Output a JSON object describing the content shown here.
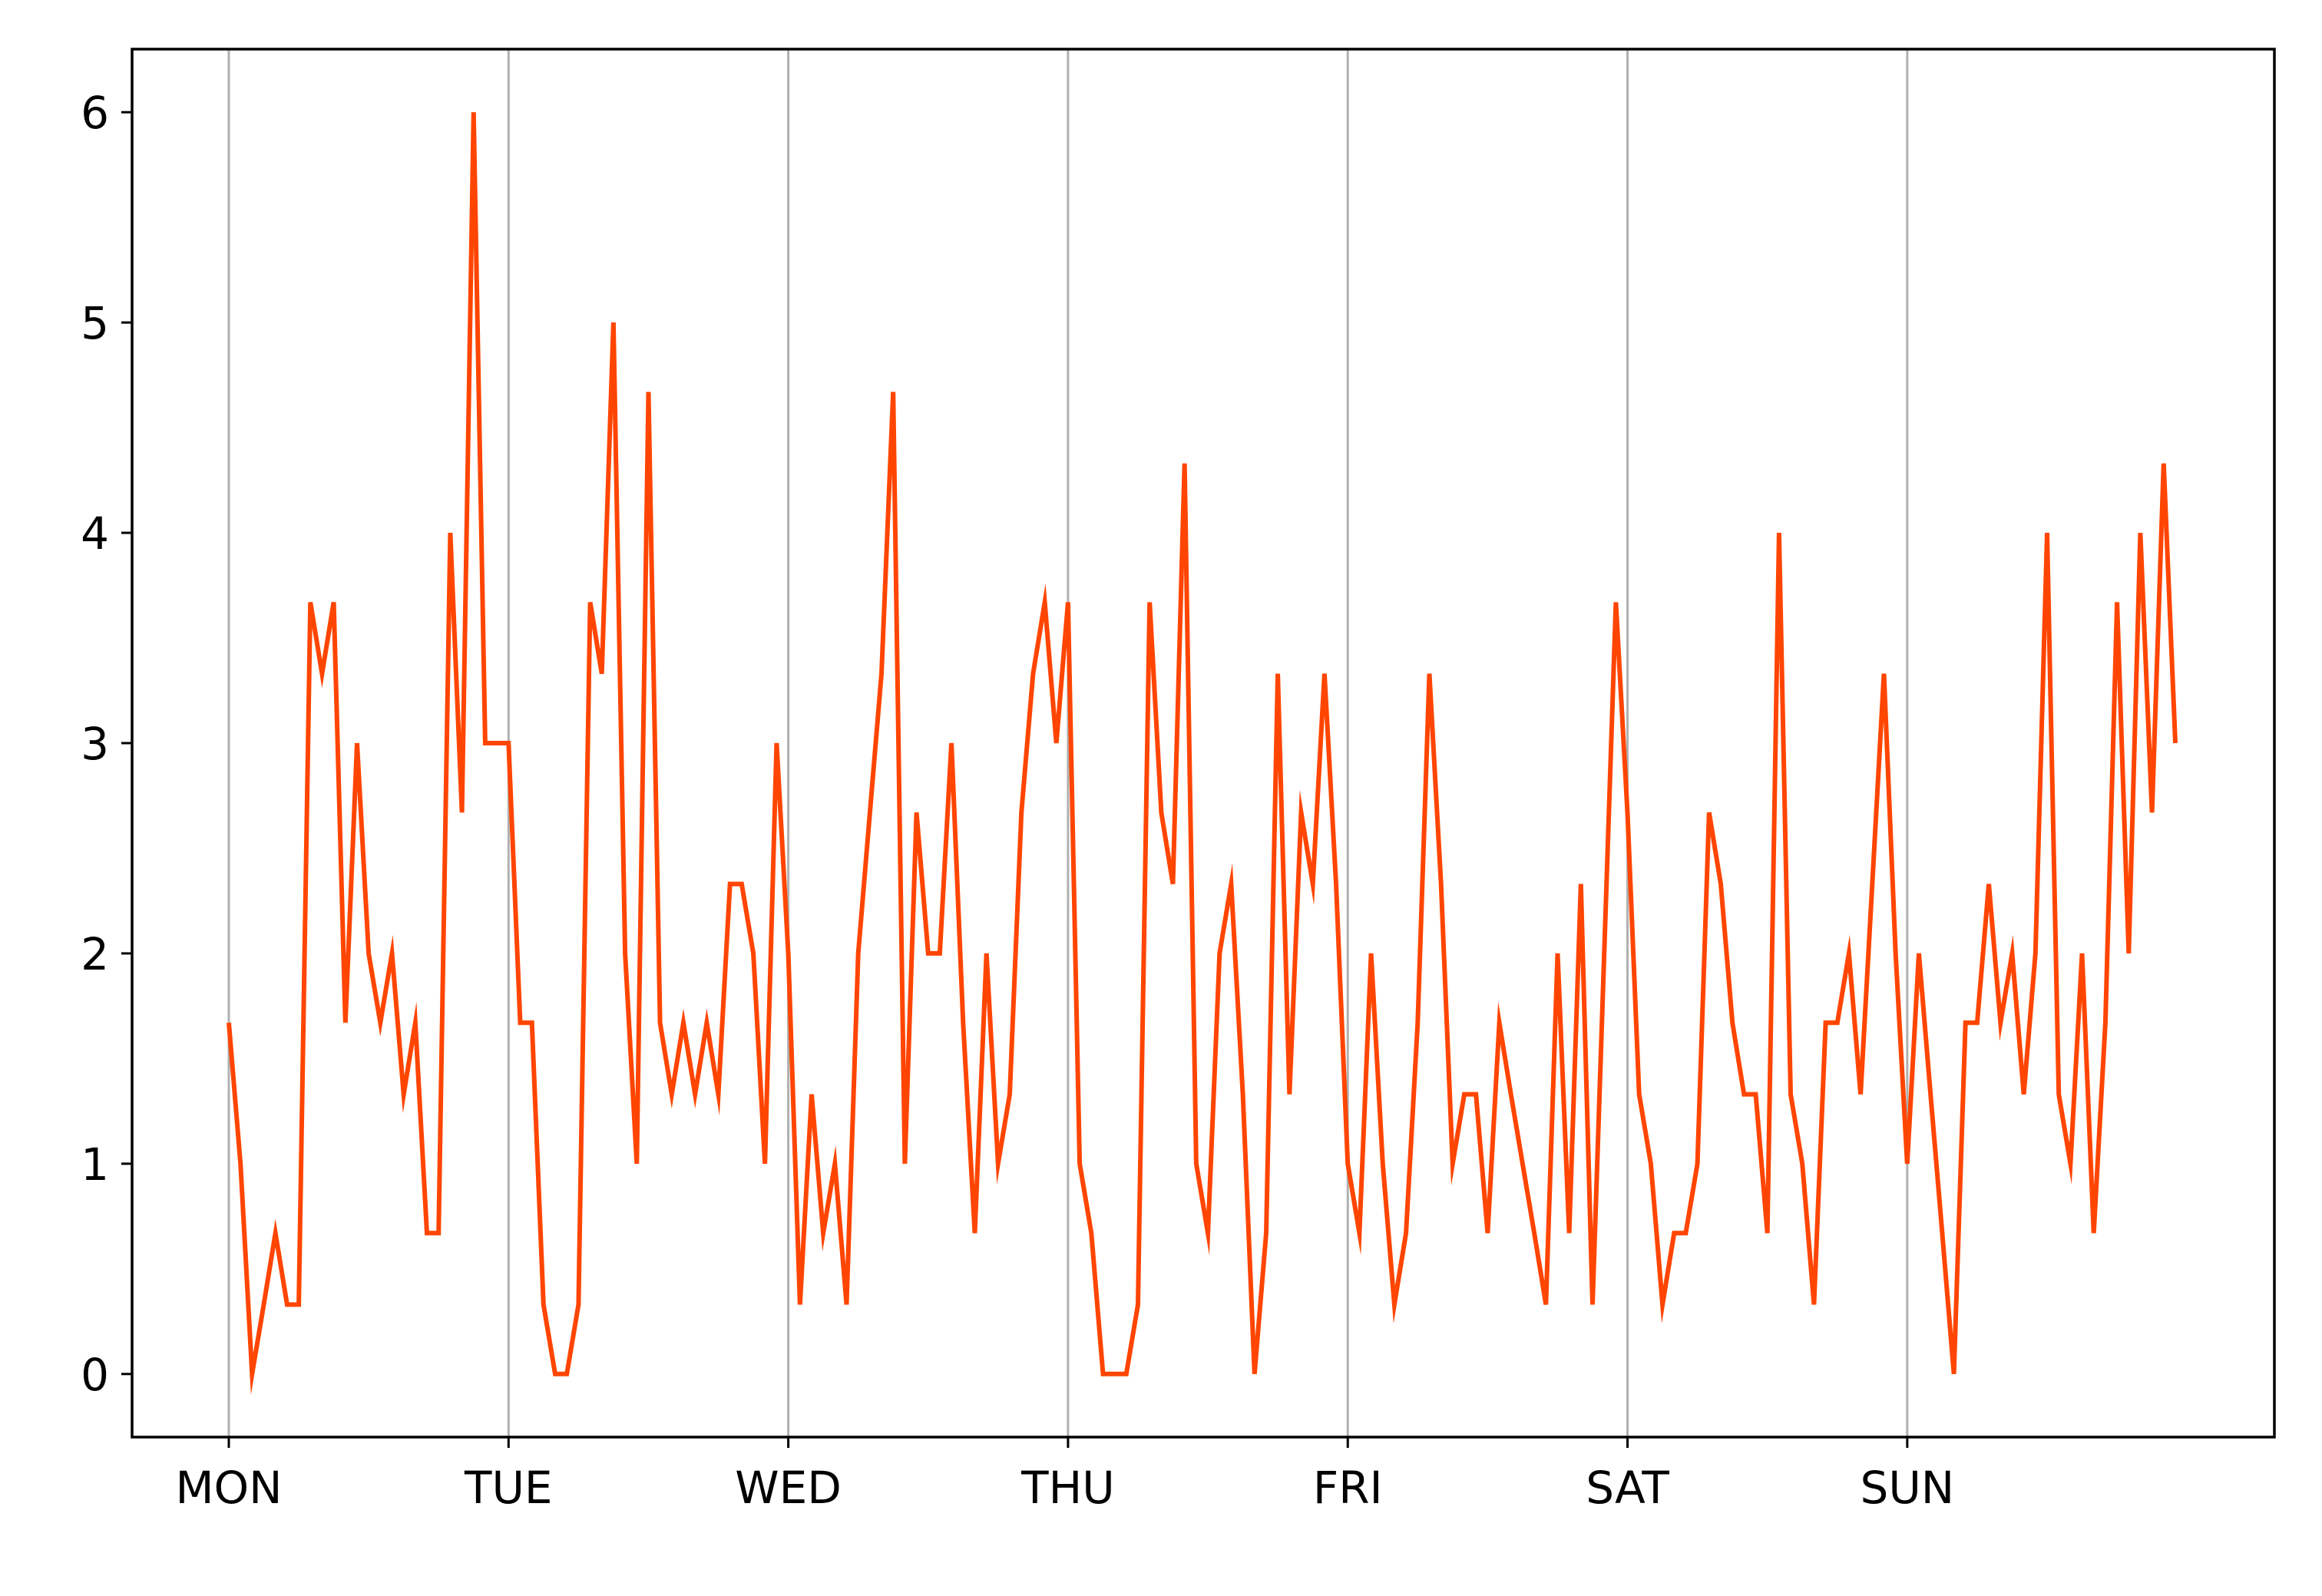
{
  "chart_data": {
    "type": "line",
    "title": "",
    "xlabel": "",
    "ylabel": "",
    "x_tick_labels": [
      "MON",
      "TUE",
      "WED",
      "THU",
      "FRI",
      "SAT",
      "SUN"
    ],
    "x_tick_positions": [
      0,
      24,
      48,
      72,
      96,
      120,
      144
    ],
    "xlim": [
      -8.3,
      175.5
    ],
    "y_ticks": [
      0,
      1,
      2,
      3,
      4,
      5,
      6
    ],
    "ylim": [
      -0.3,
      6.3
    ],
    "grid": "vertical",
    "series": [
      {
        "color": "#ff4500",
        "values": [
          1.67,
          1.0,
          0.0,
          0.33,
          0.67,
          0.33,
          0.33,
          3.67,
          3.33,
          3.67,
          1.67,
          3.0,
          2.0,
          1.67,
          2.0,
          1.33,
          1.67,
          0.67,
          0.67,
          4.0,
          2.67,
          6.0,
          3.0,
          3.0,
          3.0,
          1.67,
          1.67,
          0.33,
          0.0,
          0.0,
          0.33,
          3.67,
          3.33,
          5.0,
          2.0,
          1.0,
          4.67,
          1.67,
          1.33,
          1.67,
          1.33,
          1.67,
          1.33,
          2.33,
          2.33,
          2.0,
          1.0,
          3.0,
          2.0,
          0.33,
          1.33,
          0.67,
          1.0,
          0.33,
          2.0,
          2.67,
          3.33,
          4.67,
          1.0,
          2.67,
          2.0,
          2.0,
          3.0,
          1.67,
          0.67,
          2.0,
          1.0,
          1.33,
          2.67,
          3.33,
          3.67,
          3.0,
          3.67,
          1.0,
          0.67,
          0.0,
          0.0,
          0.0,
          0.33,
          3.67,
          2.67,
          2.33,
          4.33,
          1.0,
          0.67,
          2.0,
          2.33,
          1.33,
          0.0,
          0.67,
          3.33,
          1.33,
          2.67,
          2.33,
          3.33,
          2.33,
          1.0,
          0.67,
          2.0,
          1.0,
          0.33,
          0.67,
          1.67,
          3.33,
          2.33,
          1.0,
          1.33,
          1.33,
          0.67,
          1.67,
          1.33,
          1.0,
          0.67,
          0.33,
          2.0,
          0.67,
          2.33,
          0.33,
          2.0,
          3.67,
          2.67,
          1.33,
          1.0,
          0.33,
          0.67,
          0.67,
          1.0,
          2.67,
          2.33,
          1.67,
          1.33,
          1.33,
          0.67,
          4.0,
          1.33,
          1.0,
          0.33,
          1.67,
          1.67,
          2.0,
          1.33,
          2.33,
          3.33,
          2.0,
          1.0,
          2.0,
          1.33,
          0.67,
          0.0,
          1.67,
          1.67,
          2.33,
          1.67,
          2.0,
          1.33,
          2.0,
          4.0,
          1.33,
          1.0,
          2.0,
          0.67,
          1.67,
          3.67,
          2.0,
          4.0,
          2.67,
          4.33,
          3.0
        ]
      }
    ]
  }
}
